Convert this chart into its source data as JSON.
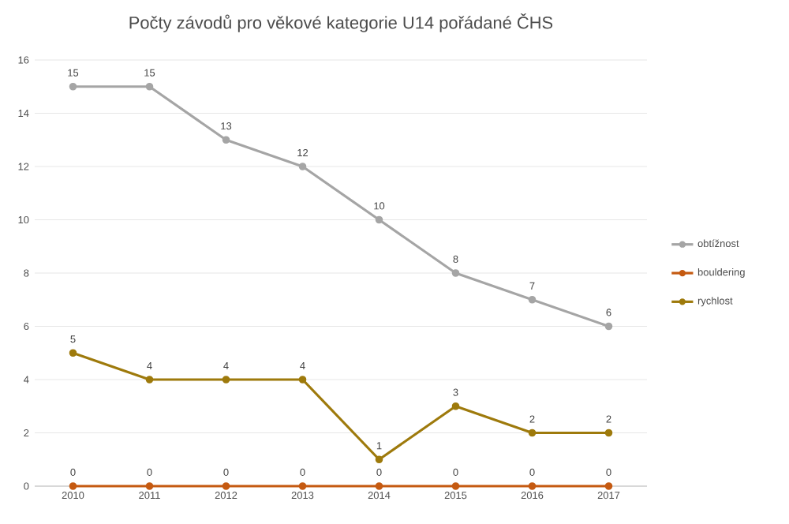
{
  "chart_data": {
    "type": "line",
    "title": "Počty závodů pro věkové kategorie U14 pořádané ČHS",
    "categories": [
      "2010",
      "2011",
      "2012",
      "2013",
      "2014",
      "2015",
      "2016",
      "2017"
    ],
    "series": [
      {
        "name": "obtížnost",
        "color": "#a5a5a5",
        "values": [
          15,
          15,
          13,
          12,
          10,
          8,
          7,
          6
        ]
      },
      {
        "name": "bouldering",
        "color": "#c55a11",
        "values": [
          0,
          0,
          0,
          0,
          0,
          0,
          0,
          0
        ]
      },
      {
        "name": "rychlost",
        "color": "#9e7a0c",
        "values": [
          5,
          4,
          4,
          4,
          1,
          3,
          2,
          2
        ]
      }
    ],
    "ylim": [
      0,
      16
    ],
    "yticks": [
      0,
      2,
      4,
      6,
      8,
      10,
      12,
      14,
      16
    ],
    "grid": "y",
    "legend": "right",
    "marker": "circle",
    "data_labels": true
  }
}
